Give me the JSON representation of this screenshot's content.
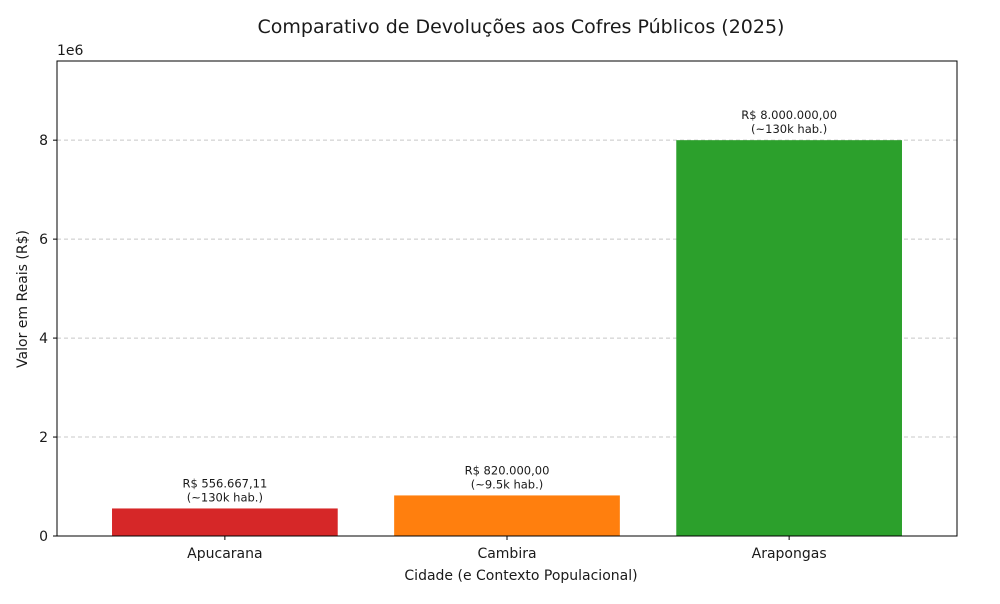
{
  "chart_data": {
    "type": "bar",
    "title": "Comparativo de Devoluções aos Cofres Públicos (2025)",
    "xlabel": "Cidade (e Contexto Populacional)",
    "ylabel": "Valor em Reais (R$)",
    "y_offset_label": "1e6",
    "categories": [
      "Apucarana",
      "Cambira",
      "Arapongas"
    ],
    "values": [
      556667.11,
      820000.0,
      8000000.0
    ],
    "colors": [
      "#d62728",
      "#ff7f0e",
      "#2ca02c"
    ],
    "bar_labels": [
      [
        "R$ 556.667,11",
        "(~130k hab.)"
      ],
      [
        "R$ 820.000,00",
        "(~9.5k hab.)"
      ],
      [
        "R$ 8.000.000,00",
        "(~130k hab.)"
      ]
    ],
    "ylim": [
      0,
      9600000
    ],
    "yticks": [
      0,
      2000000,
      4000000,
      6000000,
      8000000
    ],
    "ytick_labels": [
      "0",
      "2",
      "4",
      "6",
      "8"
    ],
    "grid": "y-dashed",
    "legend": "none"
  }
}
